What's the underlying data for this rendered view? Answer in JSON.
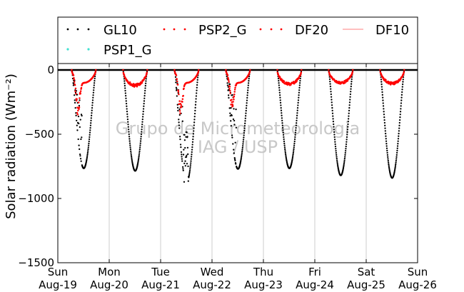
{
  "chart_data": {
    "type": "scatter",
    "title": "",
    "ylabel": "Solar radiation (Wm⁻²)",
    "xlabel": "",
    "ylim": [
      -1500,
      50
    ],
    "yticks": [
      0,
      -500,
      -1000,
      -1500
    ],
    "ytick_labels": [
      "0",
      "−500",
      "−1000",
      "−1500"
    ],
    "xlim_days": [
      0,
      7
    ],
    "x_ticks": [
      {
        "day": "Sun",
        "date": "Aug-19"
      },
      {
        "day": "Mon",
        "date": "Aug-20"
      },
      {
        "day": "Tue",
        "date": "Aug-21"
      },
      {
        "day": "Wed",
        "date": "Aug-22"
      },
      {
        "day": "Thu",
        "date": "Aug-23"
      },
      {
        "day": "Fri",
        "date": "Aug-24"
      },
      {
        "day": "Sat",
        "date": "Aug-25"
      },
      {
        "day": "Sun",
        "date": "Aug-26"
      }
    ],
    "grid": "vertical",
    "legend_position": "top",
    "watermark": [
      "Grupo de Micrometeorologia",
      "IAG / USP"
    ],
    "daily_peaks": {
      "GL10": [
        -765,
        -785,
        -880,
        -770,
        -765,
        -820,
        -840
      ],
      "DF20": [
        -380,
        -120,
        -400,
        -330,
        -110,
        -100,
        -105
      ]
    },
    "series": [
      {
        "name": "GL10",
        "color": "#000000",
        "marker": "dot"
      },
      {
        "name": "PSP2_G",
        "color": "#ff0000",
        "marker": "dot"
      },
      {
        "name": "DF20",
        "color": "#ff0000",
        "marker": "dot"
      },
      {
        "name": "DF10",
        "color": "#ff7f7f",
        "marker": "line"
      },
      {
        "name": "PSP1_G",
        "color": "#40e0d0",
        "marker": "dot"
      }
    ]
  }
}
